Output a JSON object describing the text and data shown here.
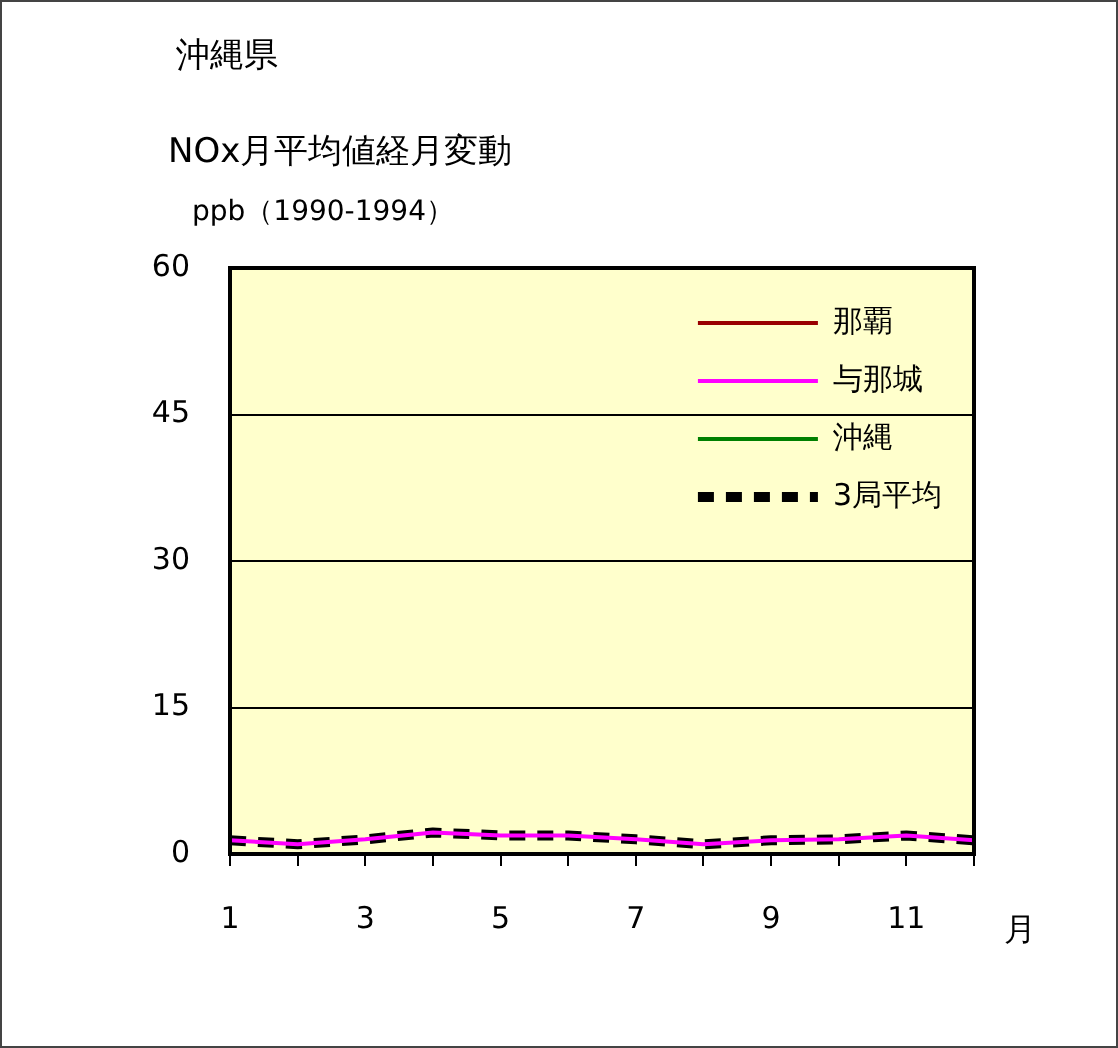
{
  "chart_data": {
    "type": "line",
    "title": "沖縄県",
    "subtitle": "NOx月平均値経月変動",
    "ylabel": "ppb（1990-1994）",
    "xlabel": "月",
    "x": [
      1,
      2,
      3,
      4,
      5,
      6,
      7,
      8,
      9,
      10,
      11,
      12
    ],
    "series": [
      {
        "name": "那覇",
        "color": "#990000",
        "values": [
          null,
          null,
          null,
          null,
          null,
          null,
          null,
          null,
          null,
          null,
          null,
          null
        ]
      },
      {
        "name": "与那城",
        "color": "#ff00ff",
        "values": [
          1.4,
          1.0,
          1.5,
          2.2,
          1.9,
          1.9,
          1.5,
          1.0,
          1.4,
          1.5,
          1.9,
          1.4
        ]
      },
      {
        "name": "沖縄",
        "color": "#008000",
        "values": [
          null,
          null,
          null,
          null,
          null,
          null,
          null,
          null,
          null,
          null,
          null,
          null
        ]
      },
      {
        "name": "3局平均",
        "color": "#000000",
        "line_style": "dashed",
        "values": [
          1.4,
          1.0,
          1.5,
          2.2,
          1.9,
          1.9,
          1.5,
          1.0,
          1.4,
          1.5,
          1.9,
          1.4
        ]
      }
    ],
    "xlim": [
      1,
      12
    ],
    "xticks": [
      1,
      {
        "value": 2,
        "label": null
      },
      3,
      {
        "value": 4,
        "label": null
      },
      5,
      {
        "value": 6,
        "label": null
      },
      7,
      {
        "value": 8,
        "label": null
      },
      9,
      {
        "value": 10,
        "label": null
      },
      11,
      {
        "value": 12,
        "label": null
      }
    ],
    "ylim": [
      0,
      60
    ],
    "yticks": [
      0,
      15,
      30,
      45,
      60
    ],
    "grid": "y",
    "legend": "top right",
    "marker": "none"
  }
}
